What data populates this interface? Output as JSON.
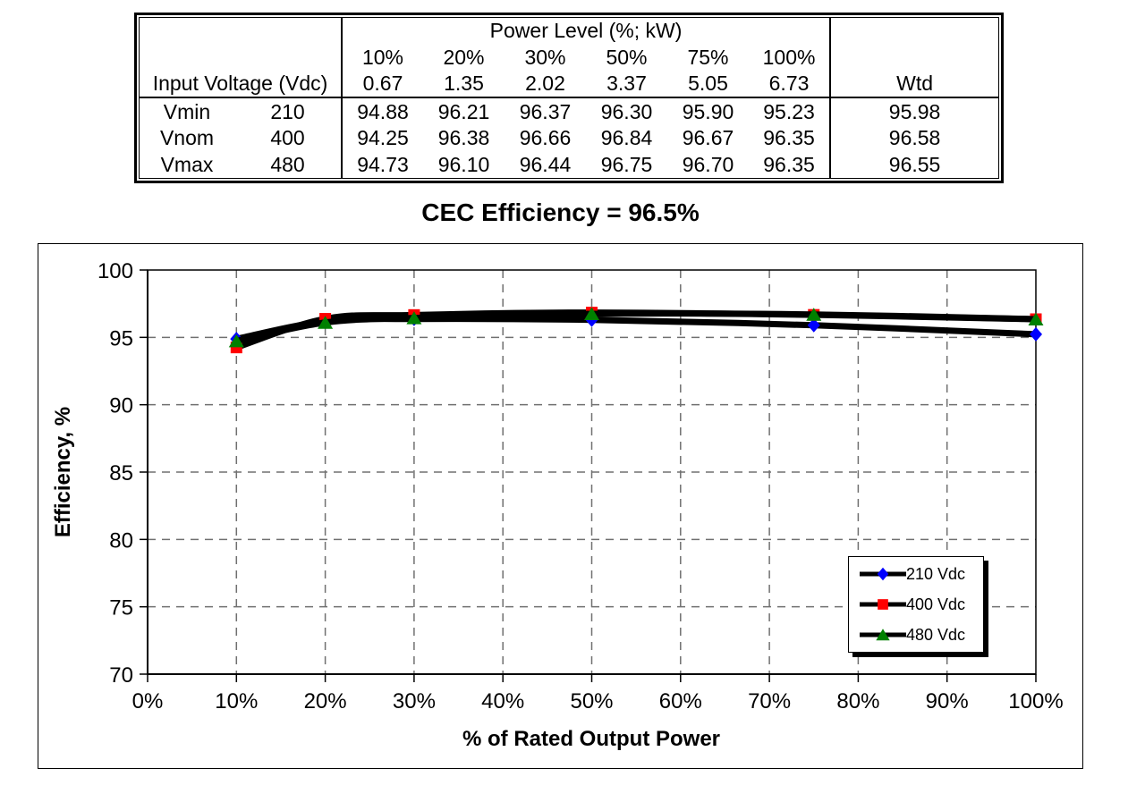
{
  "table": {
    "power_level_header": "Power Level (%; kW)",
    "input_voltage_label": "Input Voltage (Vdc)",
    "wtd_label": "Wtd",
    "col_pcts": [
      "10%",
      "20%",
      "30%",
      "50%",
      "75%",
      "100%"
    ],
    "col_kws": [
      "0.67",
      "1.35",
      "2.02",
      "3.37",
      "5.05",
      "6.73"
    ],
    "rows": [
      {
        "name": "Vmin",
        "vdc": "210",
        "values": [
          "94.88",
          "96.21",
          "96.37",
          "96.30",
          "95.90",
          "95.23"
        ],
        "wtd": "95.98"
      },
      {
        "name": "Vnom",
        "vdc": "400",
        "values": [
          "94.25",
          "96.38",
          "96.66",
          "96.84",
          "96.67",
          "96.35"
        ],
        "wtd": "96.58"
      },
      {
        "name": "Vmax",
        "vdc": "480",
        "values": [
          "94.73",
          "96.10",
          "96.44",
          "96.75",
          "96.70",
          "96.35"
        ],
        "wtd": "96.55"
      }
    ]
  },
  "chart_data": {
    "type": "line",
    "title": "CEC Efficiency = 96.5%",
    "xlabel": "% of Rated Output Power",
    "ylabel": "Efficiency, %",
    "x": [
      10,
      20,
      30,
      50,
      75,
      100
    ],
    "xlim": [
      0,
      100
    ],
    "ylim": [
      70,
      100
    ],
    "y_ticks": [
      70,
      75,
      80,
      85,
      90,
      95,
      100
    ],
    "x_tick_labels": [
      "0%",
      "10%",
      "20%",
      "30%",
      "40%",
      "50%",
      "60%",
      "70%",
      "80%",
      "90%",
      "100%"
    ],
    "grid": "dashed-gray",
    "legend_position": "inside-lower-right",
    "line_color": "#000000",
    "series": [
      {
        "name": "210 Vdc",
        "marker": "diamond",
        "color": "#0000FF",
        "values": [
          94.88,
          96.21,
          96.37,
          96.3,
          95.9,
          95.23
        ]
      },
      {
        "name": "400 Vdc",
        "marker": "square",
        "color": "#FF0000",
        "values": [
          94.25,
          96.38,
          96.66,
          96.84,
          96.67,
          96.35
        ]
      },
      {
        "name": "480 Vdc",
        "marker": "triangle",
        "color": "#008000",
        "values": [
          94.73,
          96.1,
          96.44,
          96.75,
          96.7,
          96.35
        ]
      }
    ]
  }
}
